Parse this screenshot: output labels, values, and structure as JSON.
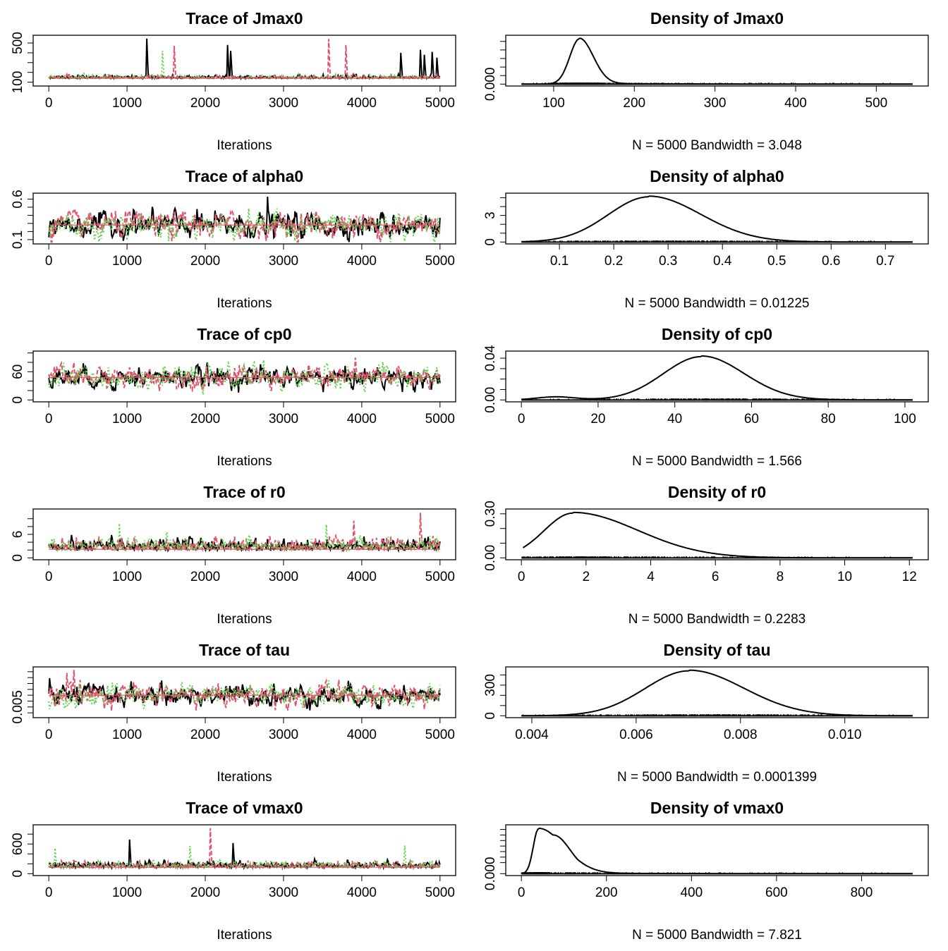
{
  "colors": {
    "chain1": "#000000",
    "chain2": "#DF536B",
    "chain3": "#61D04F",
    "smooth": "#DF536B"
  },
  "chart_data": [
    {
      "type": "line",
      "kind": "trace",
      "param": "Jmax0",
      "title": "Trace of Jmax0",
      "xlabel": "Iterations",
      "xlim": [
        0,
        5000
      ],
      "xticks": [
        0,
        1000,
        2000,
        3000,
        4000,
        5000
      ],
      "ylim": [
        80,
        560
      ],
      "yticks": [
        100,
        500
      ],
      "yticks_labeled": [
        "100",
        "500"
      ],
      "yticks_unlabeled": [
        200,
        300,
        400
      ],
      "series": [],
      "profile": {
        "center": 140,
        "sd": 14,
        "spikes": [
          [
            1250,
            545,
            0
          ],
          [
            1600,
            470,
            1
          ],
          [
            2280,
            480,
            0
          ],
          [
            2320,
            420,
            0
          ],
          [
            3580,
            540,
            1
          ],
          [
            3800,
            480,
            1
          ],
          [
            4500,
            400,
            0
          ],
          [
            4750,
            430,
            0
          ],
          [
            4800,
            380,
            0
          ],
          [
            4900,
            410,
            0
          ],
          [
            4960,
            350,
            0
          ],
          [
            1450,
            420,
            2
          ]
        ]
      }
    },
    {
      "type": "line",
      "kind": "density",
      "param": "Jmax0",
      "title": "Density of Jmax0",
      "xlabel": "N = 5000   Bandwidth = 3.048",
      "xlim": [
        60,
        545
      ],
      "xticks": [
        100,
        200,
        300,
        400,
        500
      ],
      "ylim": [
        0,
        0.0275
      ],
      "yticks": [
        0.0
      ],
      "yticks_labeled": [
        "0.000"
      ],
      "yticks_unlabeled": [
        0.005,
        0.01,
        0.015,
        0.02,
        0.025
      ],
      "curve": {
        "peak_x": 132,
        "peak_y": 0.0265,
        "sd_left": 12,
        "sd_right": 17,
        "tail_to": 545,
        "tail_scale": 40
      }
    },
    {
      "type": "line",
      "kind": "trace",
      "param": "alpha0",
      "title": "Trace of alpha0",
      "xlabel": "Iterations",
      "xlim": [
        0,
        5000
      ],
      "xticks": [
        0,
        1000,
        2000,
        3000,
        4000,
        5000
      ],
      "ylim": [
        0.07,
        0.65
      ],
      "yticks": [
        0.1,
        0.6
      ],
      "yticks_labeled": [
        "0.1",
        "0.6"
      ],
      "yticks_unlabeled": [
        0.2,
        0.3,
        0.4,
        0.5
      ],
      "series": [],
      "profile": {
        "center": 0.28,
        "sd": 0.075,
        "spikes": [
          [
            2800,
            0.63,
            0
          ]
        ]
      }
    },
    {
      "type": "line",
      "kind": "density",
      "param": "alpha0",
      "title": "Density of alpha0",
      "xlabel": "N = 5000   Bandwidth = 0.01225",
      "xlim": [
        0.03,
        0.75
      ],
      "xticks": [
        0.1,
        0.2,
        0.3,
        0.4,
        0.5,
        0.6,
        0.7
      ],
      "ylim": [
        0,
        5.3
      ],
      "yticks": [
        0,
        3
      ],
      "yticks_labeled": [
        "0",
        "3"
      ],
      "yticks_unlabeled": [
        1,
        2,
        4,
        5
      ],
      "curve": {
        "peak_x": 0.265,
        "peak_y": 5.1,
        "sd_left": 0.075,
        "sd_right": 0.095,
        "tail_to": 0.75,
        "tail_scale": 0.05
      }
    },
    {
      "type": "line",
      "kind": "trace",
      "param": "cp0",
      "title": "Trace of cp0",
      "xlabel": "Iterations",
      "xlim": [
        0,
        5000
      ],
      "xticks": [
        0,
        1000,
        2000,
        3000,
        4000,
        5000
      ],
      "ylim": [
        0,
        100
      ],
      "yticks": [
        0,
        60
      ],
      "yticks_labeled": [
        "0",
        "60"
      ],
      "yticks_unlabeled": [
        20,
        40,
        80,
        100
      ],
      "series": [],
      "profile": {
        "center": 48,
        "sd": 11,
        "spikes": [
          [
            3920,
            90,
            1
          ],
          [
            2750,
            85,
            2
          ]
        ]
      }
    },
    {
      "type": "line",
      "kind": "density",
      "param": "cp0",
      "title": "Density of cp0",
      "xlabel": "N = 5000   Bandwidth = 1.566",
      "xlim": [
        0,
        102
      ],
      "xticks": [
        0,
        20,
        40,
        60,
        80,
        100
      ],
      "ylim": [
        0,
        0.045
      ],
      "yticks": [
        0.0,
        0.04
      ],
      "yticks_labeled": [
        "0.00",
        "0.04"
      ],
      "yticks_unlabeled": [
        0.01,
        0.02,
        0.03
      ],
      "curve": {
        "peak_x": 47,
        "peak_y": 0.0415,
        "sd_left": 10,
        "sd_right": 11,
        "tail_to": 102,
        "tail_scale": 6,
        "bump_x": 9,
        "bump_y": 0.003
      }
    },
    {
      "type": "line",
      "kind": "trace",
      "param": "r0",
      "title": "Trace of r0",
      "xlabel": "Iterations",
      "xlim": [
        0,
        5000
      ],
      "xticks": [
        0,
        1000,
        2000,
        3000,
        4000,
        5000
      ],
      "ylim": [
        0,
        12
      ],
      "yticks": [
        0,
        6
      ],
      "yticks_labeled": [
        "0",
        "6"
      ],
      "yticks_unlabeled": [
        2,
        4,
        8,
        10
      ],
      "series": [],
      "profile": {
        "center": 2.2,
        "sd": 1.3,
        "spikes": [
          [
            4750,
            11.5,
            1
          ],
          [
            3900,
            9.5,
            1
          ],
          [
            3550,
            8.5,
            2
          ],
          [
            900,
            8.8,
            2
          ]
        ]
      }
    },
    {
      "type": "line",
      "kind": "density",
      "param": "r0",
      "title": "Density of r0",
      "xlabel": "N = 5000   Bandwidth = 0.2283",
      "xlim": [
        0,
        12.1
      ],
      "xticks": [
        0,
        2,
        4,
        6,
        8,
        10,
        12
      ],
      "ylim": [
        0,
        0.32
      ],
      "yticks": [
        0.0,
        0.3
      ],
      "yticks_labeled": [
        "0.00",
        "0.30"
      ],
      "yticks_unlabeled": [
        0.1,
        0.2
      ],
      "curve": {
        "peak_x": 1.6,
        "peak_y": 0.305,
        "sd_left": 0.9,
        "sd_right": 2.0,
        "tail_to": 12.1,
        "tail_scale": 1.2,
        "start_x": 0.05,
        "start_y": 0.04
      }
    },
    {
      "type": "line",
      "kind": "trace",
      "param": "tau",
      "title": "Trace of tau",
      "xlabel": "Iterations",
      "xlim": [
        0,
        5000
      ],
      "xticks": [
        0,
        1000,
        2000,
        3000,
        4000,
        5000
      ],
      "ylim": [
        0.0035,
        0.0115
      ],
      "yticks": [
        0.005
      ],
      "yticks_labeled": [
        "0.005"
      ],
      "yticks_unlabeled": [
        0.004,
        0.006,
        0.007,
        0.008,
        0.009,
        0.01,
        0.011
      ],
      "series": [],
      "profile": {
        "center": 0.007,
        "sd": 0.0009,
        "spikes": [
          [
            320,
            0.0113,
            1
          ],
          [
            230,
            0.0108,
            1
          ]
        ]
      }
    },
    {
      "type": "line",
      "kind": "density",
      "param": "tau",
      "title": "Density of tau",
      "xlabel": "N = 5000   Bandwidth = 0.0001399",
      "xlim": [
        0.0038,
        0.0113
      ],
      "xticks": [
        0.004,
        0.006,
        0.008,
        0.01
      ],
      "xtick_labels": [
        "0.004",
        "0.006",
        "0.008",
        "0.010"
      ],
      "ylim": [
        0,
        460
      ],
      "yticks": [
        0,
        300
      ],
      "yticks_labeled": [
        "0",
        "300"
      ],
      "yticks_unlabeled": [
        100,
        200,
        400
      ],
      "curve": {
        "peak_x": 0.00702,
        "peak_y": 440,
        "sd_left": 0.00085,
        "sd_right": 0.00105,
        "tail_to": 0.0113,
        "tail_scale": 0.0003
      }
    },
    {
      "type": "line",
      "kind": "trace",
      "param": "vmax0",
      "title": "Trace of vmax0",
      "xlabel": "Iterations",
      "xlim": [
        0,
        5000
      ],
      "xticks": [
        0,
        1000,
        2000,
        3000,
        4000,
        5000
      ],
      "ylim": [
        0,
        950
      ],
      "yticks": [
        0,
        600
      ],
      "yticks_labeled": [
        "0",
        "600"
      ],
      "yticks_unlabeled": [
        200,
        400,
        800
      ],
      "series": [],
      "profile": {
        "center": 130,
        "sd": 55,
        "spikes": [
          [
            2060,
            920,
            1
          ],
          [
            1030,
            690,
            0
          ],
          [
            2350,
            620,
            0
          ],
          [
            1800,
            560,
            2
          ],
          [
            4550,
            570,
            2
          ],
          [
            80,
            520,
            2
          ]
        ]
      }
    },
    {
      "type": "line",
      "kind": "density",
      "param": "vmax0",
      "title": "Density of vmax0",
      "xlabel": "N = 5000   Bandwidth = 7.821",
      "xlim": [
        0,
        920
      ],
      "xticks": [
        0,
        200,
        400,
        600,
        800
      ],
      "ylim": [
        0,
        0.0085
      ],
      "yticks": [
        0.0
      ],
      "yticks_labeled": [
        "0.000"
      ],
      "yticks_unlabeled": [
        0.002,
        0.003,
        0.004,
        0.005,
        0.006,
        0.007,
        0.008
      ],
      "curve": {
        "peak_x": 40,
        "peak_y": 0.0081,
        "sd_left": 12,
        "sd_right": 60,
        "tail_to": 920,
        "tail_scale": 80,
        "shoulder_x": 75,
        "shoulder_y": 0.0069
      }
    }
  ]
}
